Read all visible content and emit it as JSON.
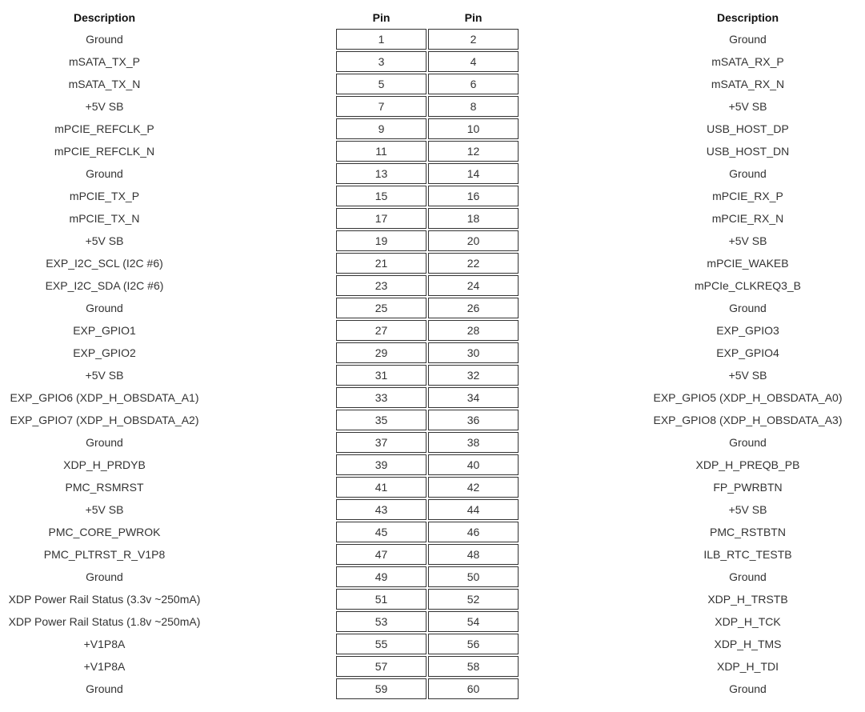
{
  "headers": {
    "left_description": "Description",
    "left_pin": "Pin",
    "right_pin": "Pin",
    "right_description": "Description"
  },
  "rows": [
    {
      "left_desc": "Ground",
      "left_pin": "1",
      "right_pin": "2",
      "right_desc": "Ground"
    },
    {
      "left_desc": "mSATA_TX_P",
      "left_pin": "3",
      "right_pin": "4",
      "right_desc": "mSATA_RX_P"
    },
    {
      "left_desc": "mSATA_TX_N",
      "left_pin": "5",
      "right_pin": "6",
      "right_desc": "mSATA_RX_N"
    },
    {
      "left_desc": "+5V SB",
      "left_pin": "7",
      "right_pin": "8",
      "right_desc": "+5V SB"
    },
    {
      "left_desc": "mPCIE_REFCLK_P",
      "left_pin": "9",
      "right_pin": "10",
      "right_desc": "USB_HOST_DP"
    },
    {
      "left_desc": "mPCIE_REFCLK_N",
      "left_pin": "11",
      "right_pin": "12",
      "right_desc": "USB_HOST_DN"
    },
    {
      "left_desc": "Ground",
      "left_pin": "13",
      "right_pin": "14",
      "right_desc": "Ground"
    },
    {
      "left_desc": "mPCIE_TX_P",
      "left_pin": "15",
      "right_pin": "16",
      "right_desc": "mPCIE_RX_P"
    },
    {
      "left_desc": "mPCIE_TX_N",
      "left_pin": "17",
      "right_pin": "18",
      "right_desc": "mPCIE_RX_N"
    },
    {
      "left_desc": "+5V SB",
      "left_pin": "19",
      "right_pin": "20",
      "right_desc": "+5V SB"
    },
    {
      "left_desc": "EXP_I2C_SCL (I2C #6)",
      "left_pin": "21",
      "right_pin": "22",
      "right_desc": "mPCIE_WAKEB"
    },
    {
      "left_desc": "EXP_I2C_SDA (I2C #6)",
      "left_pin": "23",
      "right_pin": "24",
      "right_desc": "mPCIe_CLKREQ3_B"
    },
    {
      "left_desc": "Ground",
      "left_pin": "25",
      "right_pin": "26",
      "right_desc": "Ground"
    },
    {
      "left_desc": "EXP_GPIO1",
      "left_pin": "27",
      "right_pin": "28",
      "right_desc": "EXP_GPIO3"
    },
    {
      "left_desc": "EXP_GPIO2",
      "left_pin": "29",
      "right_pin": "30",
      "right_desc": "EXP_GPIO4"
    },
    {
      "left_desc": "+5V SB",
      "left_pin": "31",
      "right_pin": "32",
      "right_desc": "+5V SB"
    },
    {
      "left_desc": "EXP_GPIO6 (XDP_H_OBSDATA_A1)",
      "left_pin": "33",
      "right_pin": "34",
      "right_desc": "EXP_GPIO5 (XDP_H_OBSDATA_A0)"
    },
    {
      "left_desc": "EXP_GPIO7 (XDP_H_OBSDATA_A2)",
      "left_pin": "35",
      "right_pin": "36",
      "right_desc": "EXP_GPIO8 (XDP_H_OBSDATA_A3)"
    },
    {
      "left_desc": "Ground",
      "left_pin": "37",
      "right_pin": "38",
      "right_desc": "Ground"
    },
    {
      "left_desc": "XDP_H_PRDYB",
      "left_pin": "39",
      "right_pin": "40",
      "right_desc": "XDP_H_PREQB_PB"
    },
    {
      "left_desc": "PMC_RSMRST",
      "left_pin": "41",
      "right_pin": "42",
      "right_desc": "FP_PWRBTN"
    },
    {
      "left_desc": "+5V SB",
      "left_pin": "43",
      "right_pin": "44",
      "right_desc": "+5V SB"
    },
    {
      "left_desc": "PMC_CORE_PWROK",
      "left_pin": "45",
      "right_pin": "46",
      "right_desc": "PMC_RSTBTN"
    },
    {
      "left_desc": "PMC_PLTRST_R_V1P8",
      "left_pin": "47",
      "right_pin": "48",
      "right_desc": "ILB_RTC_TESTB"
    },
    {
      "left_desc": "Ground",
      "left_pin": "49",
      "right_pin": "50",
      "right_desc": "Ground"
    },
    {
      "left_desc": "XDP Power Rail Status (3.3v ~250mA)",
      "left_pin": "51",
      "right_pin": "52",
      "right_desc": "XDP_H_TRSTB"
    },
    {
      "left_desc": "XDP Power Rail Status (1.8v ~250mA)",
      "left_pin": "53",
      "right_pin": "54",
      "right_desc": "XDP_H_TCK"
    },
    {
      "left_desc": "+V1P8A",
      "left_pin": "55",
      "right_pin": "56",
      "right_desc": "XDP_H_TMS"
    },
    {
      "left_desc": "+V1P8A",
      "left_pin": "57",
      "right_pin": "58",
      "right_desc": "XDP_H_TDI"
    },
    {
      "left_desc": "Ground",
      "left_pin": "59",
      "right_pin": "60",
      "right_desc": "Ground"
    }
  ]
}
